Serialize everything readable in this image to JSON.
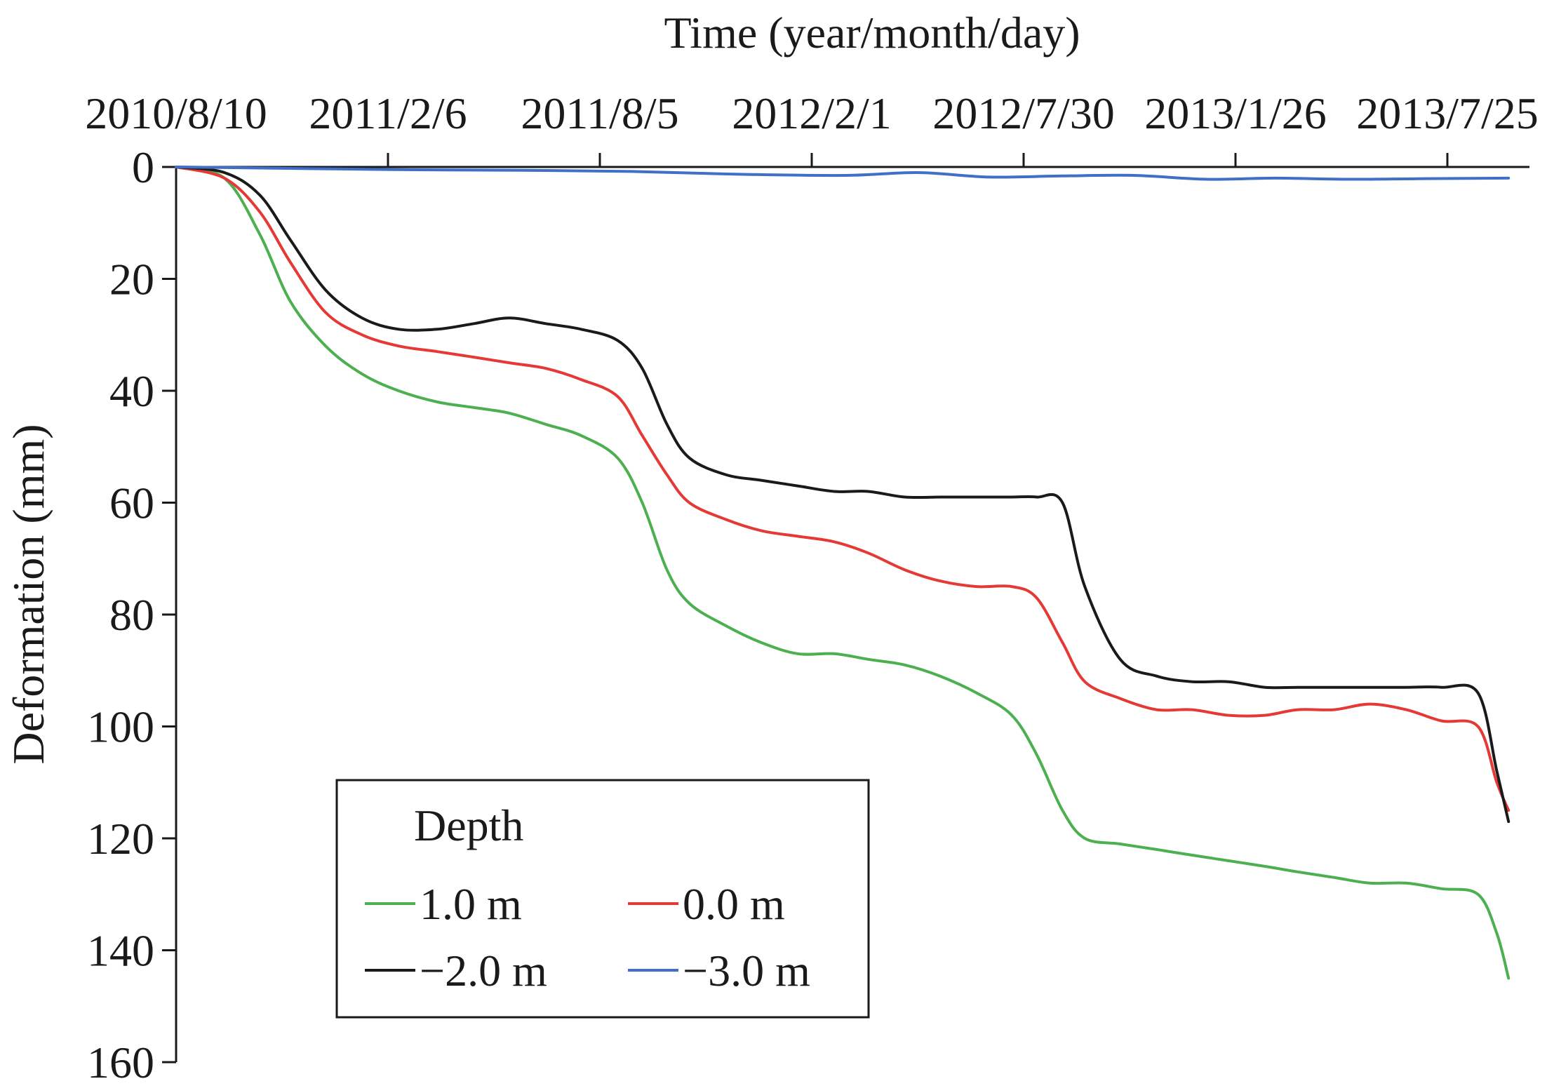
{
  "chart_data": {
    "type": "line",
    "title": "",
    "xlabel": "Time (year/month/day)",
    "ylabel": "Deformation (mm)",
    "x_axis_position": "top",
    "y_inverted": true,
    "xlim": [
      "2010/8/10",
      "2013/9/15"
    ],
    "ylim": [
      0,
      160
    ],
    "x_ticks": [
      "2010/8/10",
      "2011/2/6",
      "2011/8/5",
      "2012/2/1",
      "2012/7/30",
      "2013/1/26",
      "2013/7/25"
    ],
    "y_ticks": [
      "0",
      "20",
      "40",
      "60",
      "80",
      "100",
      "120",
      "140",
      "160"
    ],
    "grid": false,
    "legend": {
      "title": "Depth",
      "position": "bottom-left",
      "entries": [
        "1.0 m",
        "0.0 m",
        "−2.0 m",
        "−3.0 m"
      ]
    },
    "series": [
      {
        "name": "1.0 m",
        "color": "#4caf50",
        "x": [
          "2010/8/10",
          "2010/9/20",
          "2010/10/20",
          "2010/11/15",
          "2010/12/15",
          "2011/1/15",
          "2011/2/15",
          "2011/3/20",
          "2011/4/20",
          "2011/5/20",
          "2011/6/20",
          "2011/7/20",
          "2011/8/20",
          "2011/9/10",
          "2011/10/1",
          "2011/10/20",
          "2011/11/20",
          "2011/12/20",
          "2012/1/20",
          "2012/2/20",
          "2012/3/20",
          "2012/4/20",
          "2012/5/20",
          "2012/6/20",
          "2012/7/20",
          "2012/8/10",
          "2012/9/1",
          "2012/9/20",
          "2012/10/20",
          "2012/11/20",
          "2012/12/20",
          "2013/1/20",
          "2013/2/20",
          "2013/3/20",
          "2013/4/20",
          "2013/5/20",
          "2013/6/20",
          "2013/7/20",
          "2013/8/20",
          "2013/9/5",
          "2013/9/15"
        ],
        "y": [
          0,
          2,
          12,
          24,
          32,
          37,
          40,
          42,
          43,
          44,
          46,
          48,
          52,
          60,
          72,
          78,
          82,
          85,
          87,
          87,
          88,
          89,
          91,
          94,
          98,
          105,
          115,
          120,
          121,
          122,
          123,
          124,
          125,
          126,
          127,
          128,
          128,
          129,
          130,
          137,
          145
        ]
      },
      {
        "name": "0.0 m",
        "color": "#e53935",
        "x": [
          "2010/8/10",
          "2010/9/20",
          "2010/10/20",
          "2010/11/15",
          "2010/12/15",
          "2011/1/15",
          "2011/2/15",
          "2011/3/20",
          "2011/4/20",
          "2011/5/20",
          "2011/6/20",
          "2011/7/20",
          "2011/8/20",
          "2011/9/10",
          "2011/10/1",
          "2011/10/20",
          "2011/11/20",
          "2011/12/20",
          "2012/1/20",
          "2012/2/20",
          "2012/3/20",
          "2012/4/20",
          "2012/5/20",
          "2012/6/20",
          "2012/7/20",
          "2012/8/10",
          "2012/9/1",
          "2012/9/20",
          "2012/10/20",
          "2012/11/20",
          "2012/12/20",
          "2013/1/20",
          "2013/2/20",
          "2013/3/20",
          "2013/4/20",
          "2013/5/20",
          "2013/6/20",
          "2013/7/20",
          "2013/8/20",
          "2013/9/5",
          "2013/9/15"
        ],
        "y": [
          0,
          2,
          8,
          17,
          26,
          30,
          32,
          33,
          34,
          35,
          36,
          38,
          41,
          48,
          55,
          60,
          63,
          65,
          66,
          67,
          69,
          72,
          74,
          75,
          75,
          77,
          85,
          92,
          95,
          97,
          97,
          98,
          98,
          97,
          97,
          96,
          97,
          99,
          100,
          110,
          115
        ]
      },
      {
        "name": "−2.0 m",
        "color": "#1a1a1a",
        "x": [
          "2010/8/10",
          "2010/9/20",
          "2010/10/20",
          "2010/11/15",
          "2010/12/15",
          "2011/1/15",
          "2011/2/15",
          "2011/3/20",
          "2011/4/20",
          "2011/5/20",
          "2011/6/20",
          "2011/7/20",
          "2011/8/20",
          "2011/9/10",
          "2011/10/1",
          "2011/10/20",
          "2011/11/20",
          "2011/12/20",
          "2012/1/20",
          "2012/2/20",
          "2012/3/20",
          "2012/4/20",
          "2012/5/20",
          "2012/6/20",
          "2012/7/20",
          "2012/8/10",
          "2012/9/1",
          "2012/9/20",
          "2012/10/20",
          "2012/11/20",
          "2012/12/20",
          "2013/1/20",
          "2013/2/20",
          "2013/3/20",
          "2013/4/20",
          "2013/5/20",
          "2013/6/20",
          "2013/7/20",
          "2013/8/20",
          "2013/9/5",
          "2013/9/15"
        ],
        "y": [
          0,
          1,
          5,
          13,
          22,
          27,
          29,
          29,
          28,
          27,
          28,
          29,
          31,
          36,
          46,
          52,
          55,
          56,
          57,
          58,
          58,
          59,
          59,
          59,
          59,
          59,
          60,
          75,
          88,
          91,
          92,
          92,
          93,
          93,
          93,
          93,
          93,
          93,
          94,
          108,
          117
        ]
      },
      {
        "name": "−3.0 m",
        "color": "#3f6fc6",
        "x": [
          "2010/8/10",
          "2010/12/1",
          "2011/3/1",
          "2011/6/1",
          "2011/9/1",
          "2011/12/1",
          "2012/3/1",
          "2012/5/1",
          "2012/7/1",
          "2012/9/1",
          "2012/11/1",
          "2013/1/1",
          "2013/3/1",
          "2013/5/1",
          "2013/7/1",
          "2013/9/15"
        ],
        "y": [
          0,
          0.3,
          0.5,
          0.6,
          0.8,
          1.3,
          1.5,
          1.0,
          1.8,
          1.6,
          1.5,
          2.2,
          2.0,
          2.2,
          2.1,
          2.0
        ]
      }
    ]
  }
}
